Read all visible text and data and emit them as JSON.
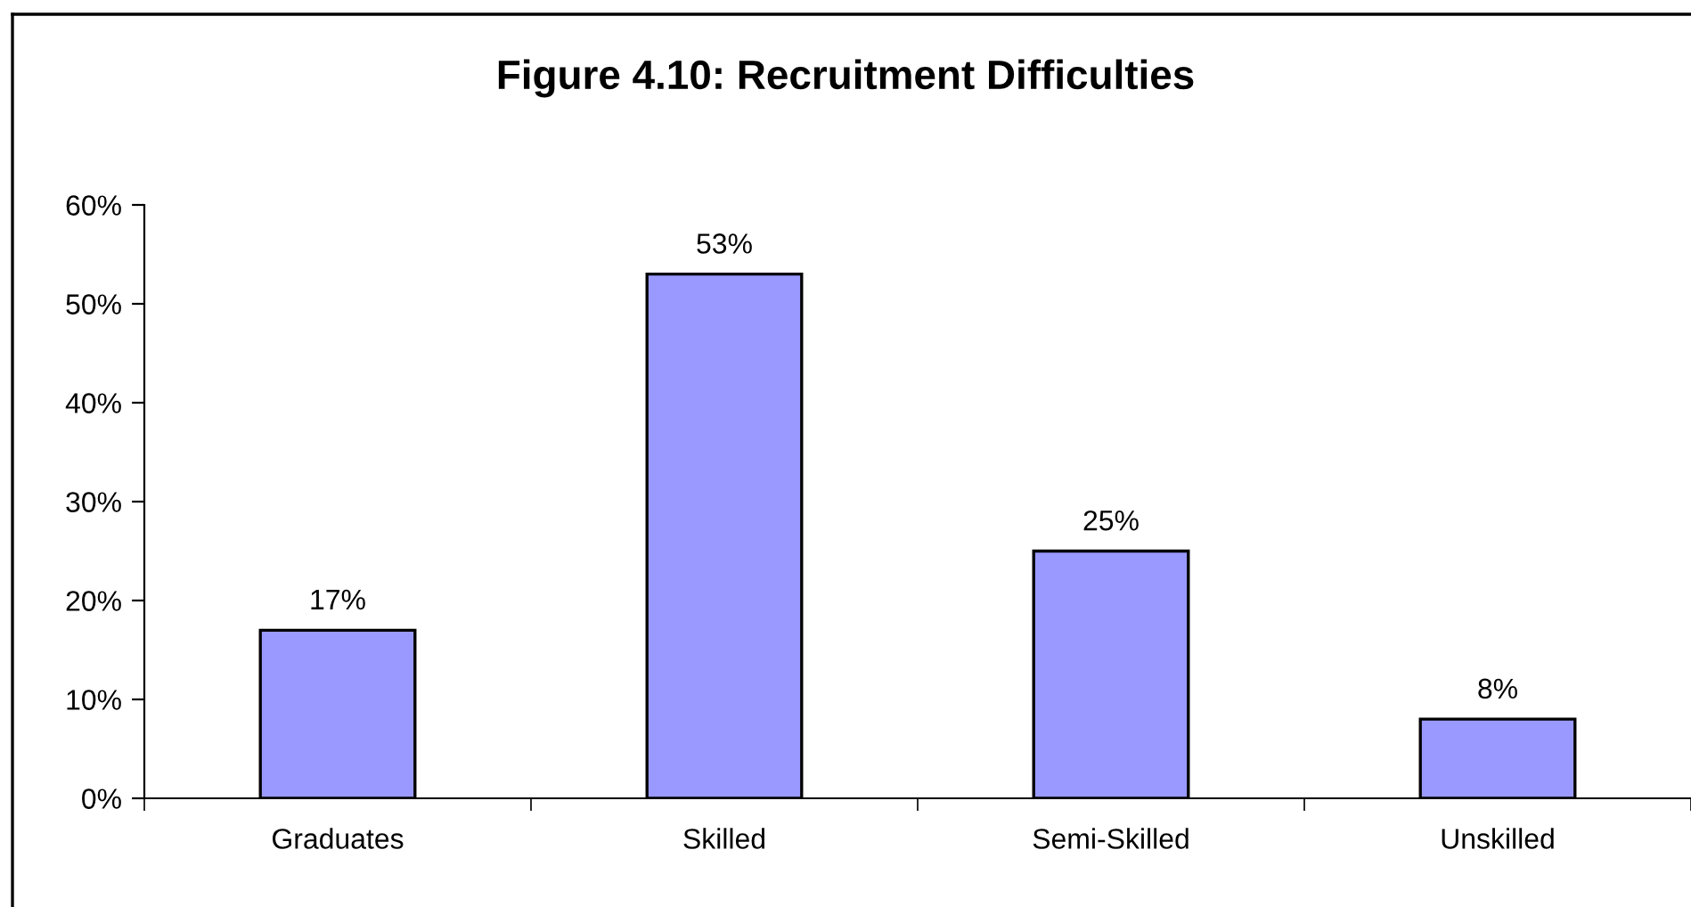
{
  "chart_data": {
    "type": "bar",
    "title": "Figure 4.10: Recruitment Difficulties",
    "categories": [
      "Graduates",
      "Skilled",
      "Semi-Skilled",
      "Unskilled"
    ],
    "values": [
      17,
      53,
      25,
      8
    ],
    "color": "#9999ff",
    "value_labels": [
      "17%",
      "53%",
      "25%",
      "8%"
    ],
    "ylim": [
      0,
      60
    ],
    "yticks": [
      {
        "value": 0,
        "label": "0%"
      },
      {
        "value": 10,
        "label": "10%"
      },
      {
        "value": 20,
        "label": "20%"
      },
      {
        "value": 30,
        "label": "30%"
      },
      {
        "value": 40,
        "label": "40%"
      },
      {
        "value": 50,
        "label": "50%"
      },
      {
        "value": 60,
        "label": "60%"
      }
    ],
    "grid": false,
    "legend": false
  }
}
